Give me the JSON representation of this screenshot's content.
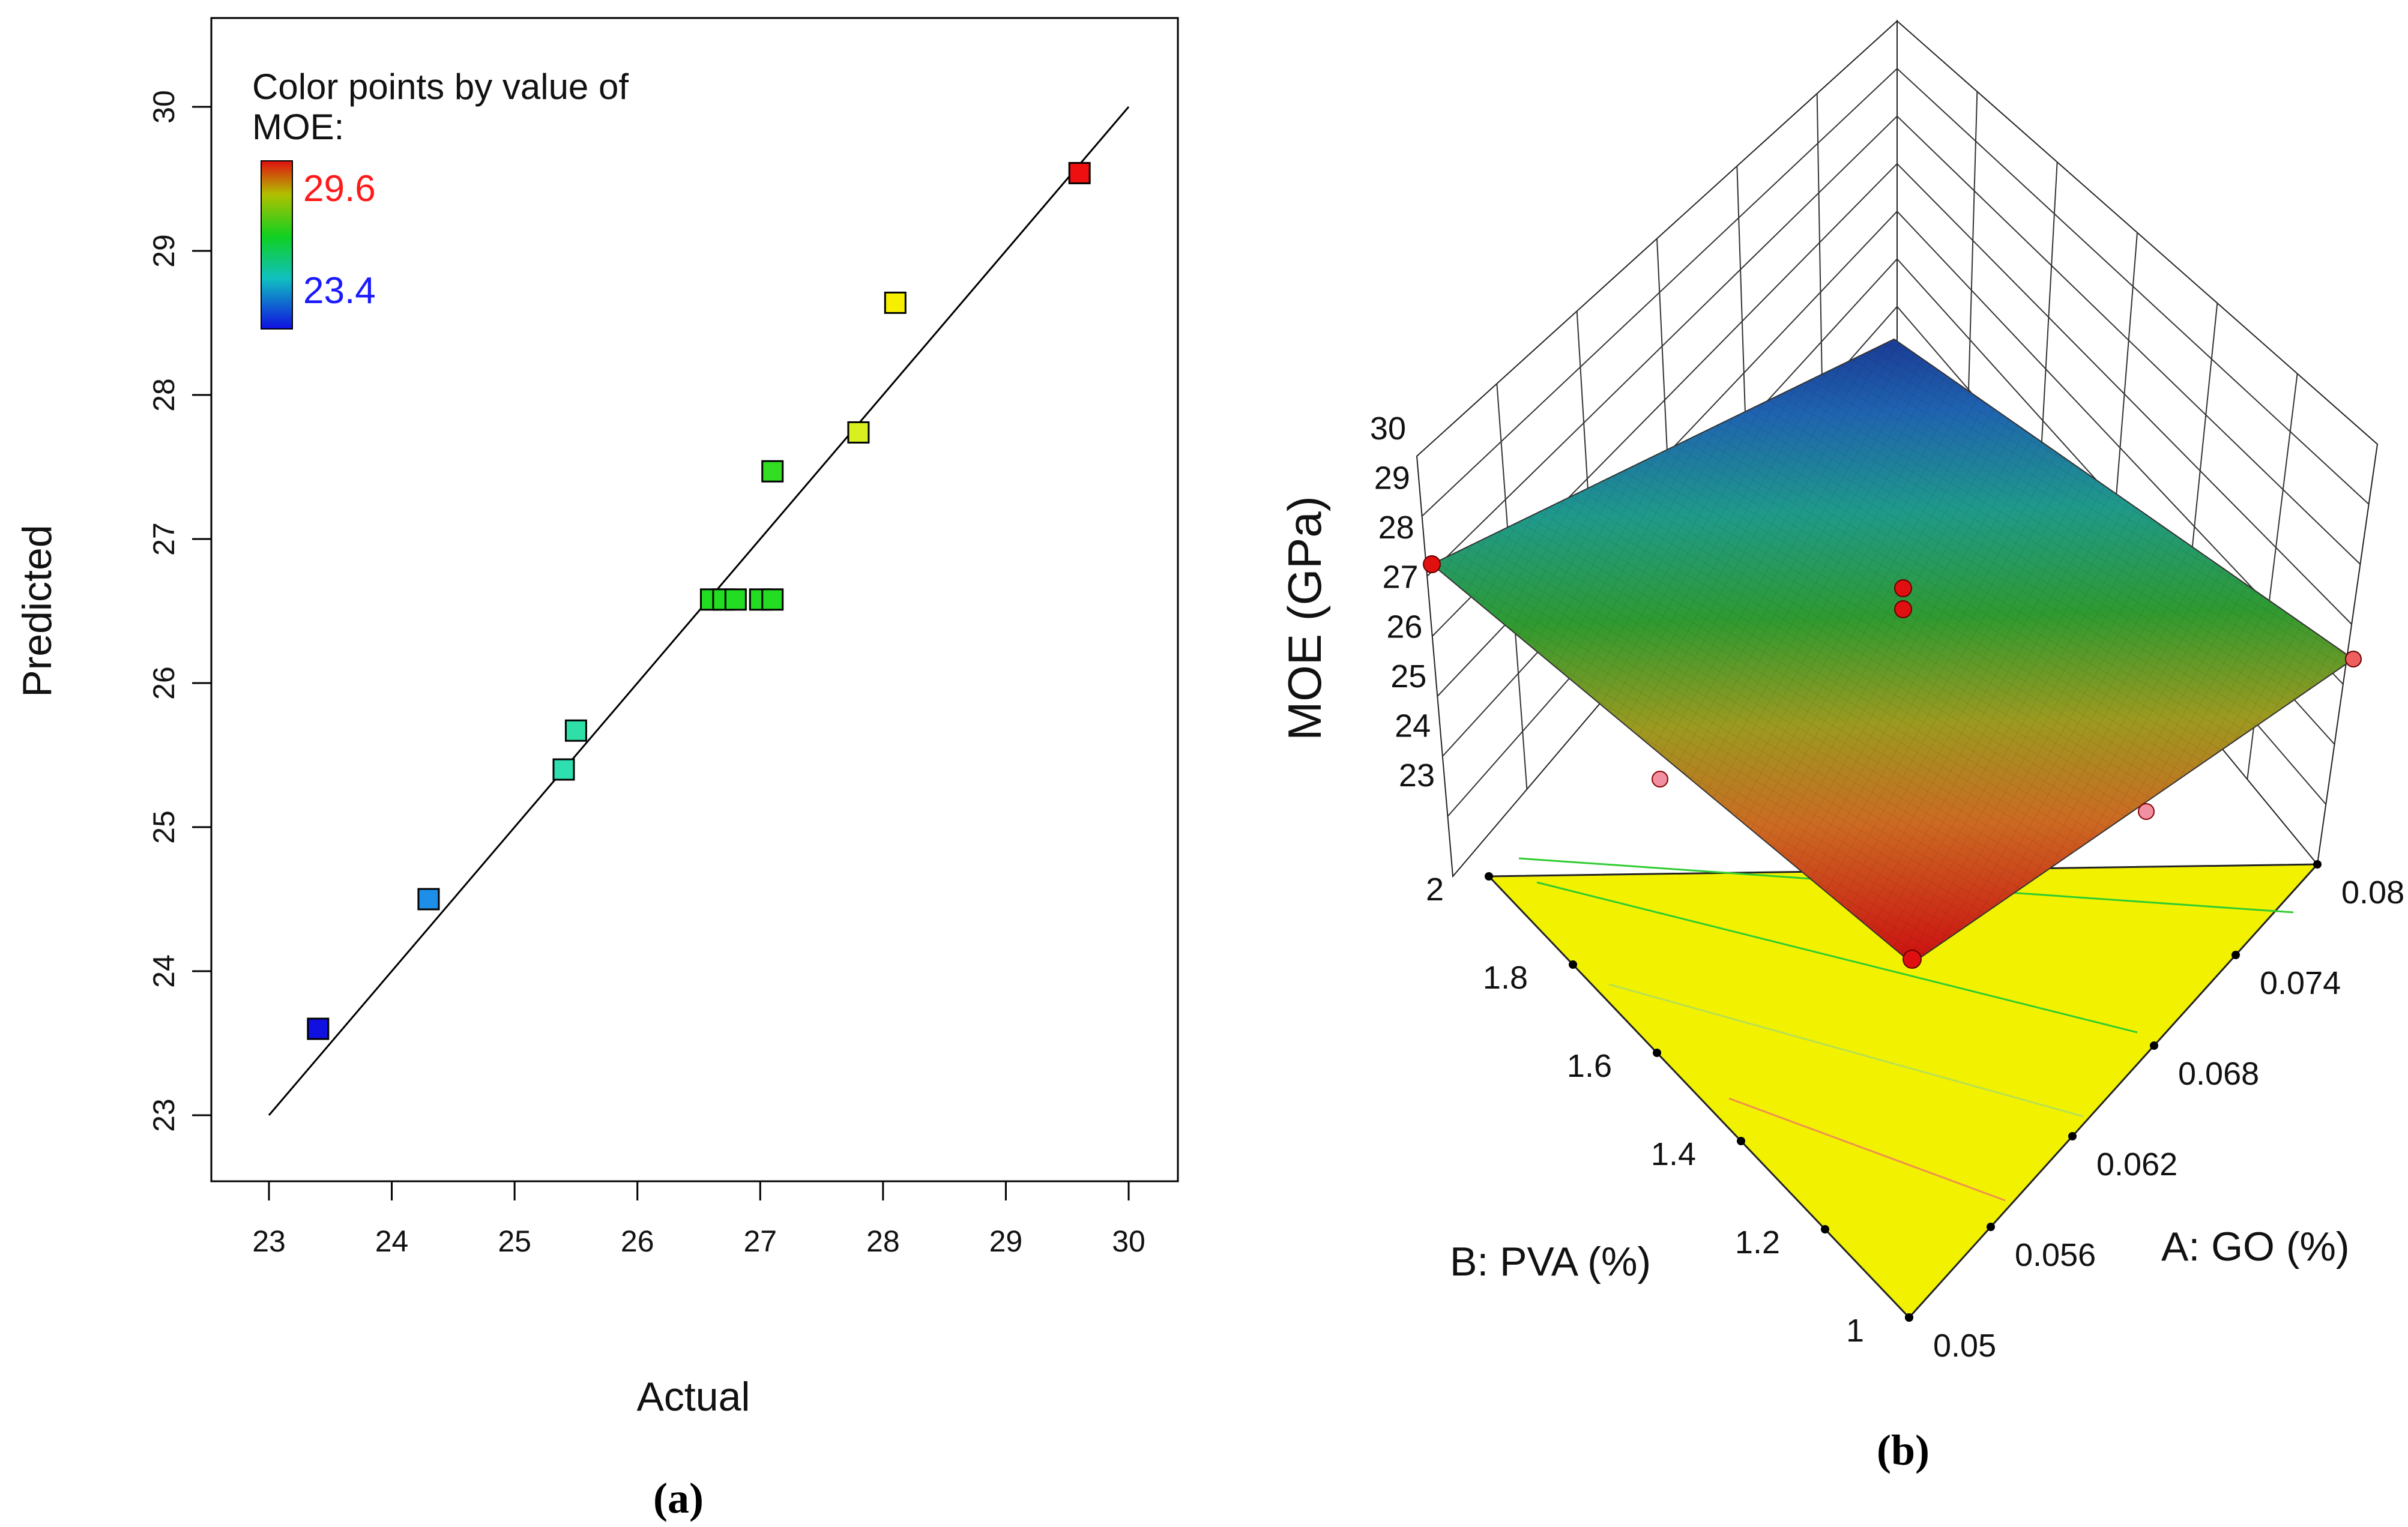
{
  "chart_data": [
    {
      "panel": "(a)",
      "type": "scatter",
      "xlabel": "Actual",
      "ylabel": "Predicted",
      "xlim": [
        23,
        30
      ],
      "ylim": [
        23,
        30
      ],
      "xticks": [
        "23",
        "24",
        "25",
        "26",
        "27",
        "28",
        "29",
        "30"
      ],
      "yticks": [
        "23",
        "24",
        "25",
        "26",
        "27",
        "28",
        "29",
        "30"
      ],
      "reference_line": {
        "from": [
          23,
          23
        ],
        "to": [
          30,
          30
        ]
      },
      "legend": {
        "title_line1": "Color points by value of",
        "title_line2": "MOE:",
        "max_label": "29.6",
        "min_label": "23.4",
        "max_color": "#ff1a1a",
        "min_color": "#1a1aff"
      },
      "points": [
        {
          "actual": 23.4,
          "predicted": 23.6,
          "color": "#1010e0"
        },
        {
          "actual": 24.3,
          "predicted": 24.5,
          "color": "#1e8fe8"
        },
        {
          "actual": 25.4,
          "predicted": 25.4,
          "color": "#2ee0b0"
        },
        {
          "actual": 25.5,
          "predicted": 25.67,
          "color": "#2ee0a8"
        },
        {
          "actual": 26.6,
          "predicted": 26.58,
          "color": "#22dd22"
        },
        {
          "actual": 26.7,
          "predicted": 26.58,
          "color": "#22dd22"
        },
        {
          "actual": 26.8,
          "predicted": 26.58,
          "color": "#22dd22"
        },
        {
          "actual": 27.0,
          "predicted": 26.58,
          "color": "#22dd22"
        },
        {
          "actual": 27.1,
          "predicted": 26.58,
          "color": "#22dd22"
        },
        {
          "actual": 27.1,
          "predicted": 27.47,
          "color": "#33dd22"
        },
        {
          "actual": 27.8,
          "predicted": 27.74,
          "color": "#d8f020"
        },
        {
          "actual": 28.1,
          "predicted": 28.64,
          "color": "#f6f000"
        },
        {
          "actual": 29.6,
          "predicted": 29.54,
          "color": "#ee1010"
        }
      ]
    },
    {
      "panel": "(b)",
      "type": "surface",
      "zlabel": "MOE (GPa)",
      "xlabel": "A: GO (%)",
      "ylabel": "B: PVA (%)",
      "zlim": [
        23,
        30
      ],
      "xlim": [
        0.05,
        0.08
      ],
      "ylim": [
        1,
        2
      ],
      "zticks": [
        "23",
        "24",
        "25",
        "26",
        "27",
        "28",
        "29",
        "30"
      ],
      "xticks": [
        "0.05",
        "0.056",
        "0.062",
        "0.068",
        "0.074",
        "0.08"
      ],
      "yticks": [
        "1",
        "1.2",
        "1.4",
        "1.6",
        "1.8",
        "2"
      ],
      "surface_corners": [
        {
          "go": 0.05,
          "pva": 1,
          "moe": 29.6
        },
        {
          "go": 0.05,
          "pva": 2,
          "moe": 27.1
        },
        {
          "go": 0.08,
          "pva": 1,
          "moe": 26.2
        },
        {
          "go": 0.08,
          "pva": 2,
          "moe": 23.4
        }
      ],
      "design_points": [
        {
          "go": 0.05,
          "pva": 2,
          "moe": 27.1
        },
        {
          "go": 0.08,
          "pva": 1,
          "moe": 26.2
        },
        {
          "go": 0.05,
          "pva": 1,
          "moe": 29.6
        },
        {
          "go": 0.065,
          "pva": 1.5,
          "moe": 26.6
        }
      ],
      "surface_colors": [
        "#cc1111",
        "#dd8822",
        "#aaa020",
        "#2a9a30",
        "#209a88",
        "#1f5fb0",
        "#1d3f96"
      ],
      "floor_color": "#f2f200"
    }
  ],
  "captions": {
    "a": "(a)",
    "b": "(b)"
  }
}
